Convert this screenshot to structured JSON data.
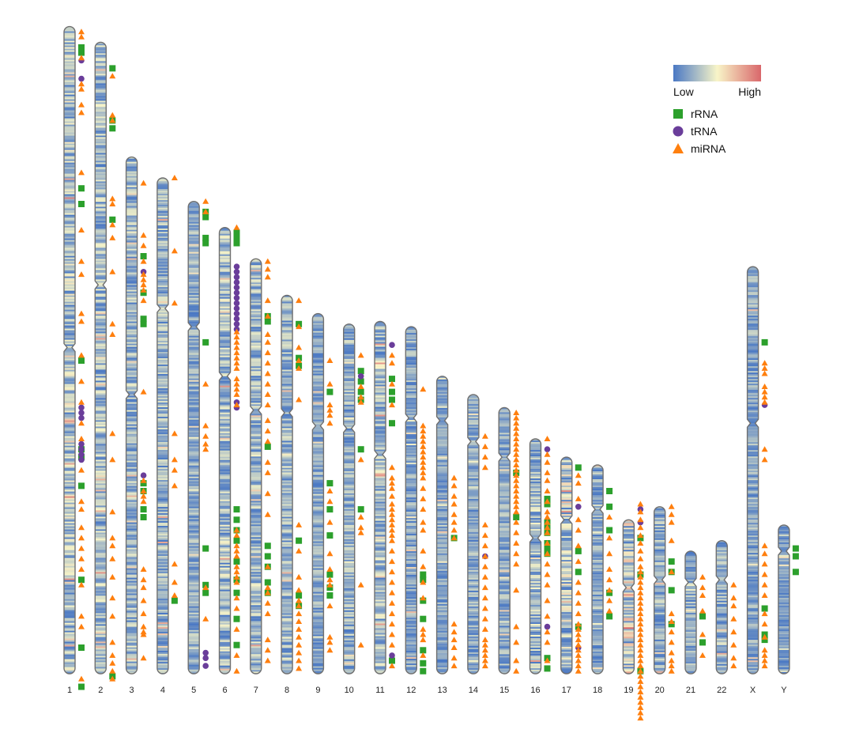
{
  "legend": {
    "gradient": {
      "low_label": "Low",
      "high_label": "High",
      "colors": [
        "#4a78c4",
        "#f8f5c8",
        "#d9676b"
      ]
    },
    "items": [
      {
        "label": "rRNA",
        "shape": "square",
        "color": "#2ca02c"
      },
      {
        "label": "tRNA",
        "shape": "circle",
        "color": "#6a3d9a"
      },
      {
        "label": "miRNA",
        "shape": "triangle",
        "color": "#ff7f0e"
      }
    ]
  },
  "chromosomes": [
    {
      "name": "1",
      "length": 248,
      "centromere": 123,
      "density": 0.45,
      "features": {
        "rRNA": [
          8,
          10,
          62,
          68,
          128,
          162,
          165,
          176,
          212,
          238,
          253
        ],
        "tRNA": [
          13,
          20,
          146,
          148,
          150,
          160,
          162,
          164,
          166
        ],
        "miRNA": [
          2,
          4,
          12,
          22,
          24,
          30,
          33,
          56,
          78,
          90,
          95,
          110,
          113,
          126,
          136,
          144,
          152,
          158,
          170,
          182,
          185,
          192,
          196,
          200,
          204,
          208,
          214,
          226,
          230,
          250
        ]
      }
    },
    {
      "name": "2",
      "length": 242,
      "centromere": 93,
      "density": 0.4,
      "features": {
        "rRNA": [
          10,
          30,
          33,
          68,
          243
        ],
        "tRNA": [],
        "miRNA": [
          13,
          28,
          30,
          60,
          62,
          70,
          75,
          88,
          108,
          112,
          150,
          160,
          180,
          190,
          193,
          198,
          205,
          213,
          220,
          230,
          235,
          238,
          241,
          244
        ]
      }
    },
    {
      "name": "3",
      "length": 198,
      "centromere": 91,
      "density": 0.38,
      "features": {
        "rRNA": [
          38,
          52,
          62,
          64,
          125,
          128,
          135,
          138
        ],
        "tRNA": [
          44,
          122
        ],
        "miRNA": [
          10,
          30,
          34,
          40,
          45,
          47,
          49,
          51,
          55,
          90,
          124,
          128,
          130,
          132,
          158,
          162,
          165,
          170,
          175,
          180,
          182,
          183,
          192
        ]
      }
    },
    {
      "name": "4",
      "length": 190,
      "centromere": 50,
      "density": 0.35,
      "features": {
        "rRNA": [
          162
        ],
        "tRNA": [],
        "miRNA": [
          0,
          28,
          48,
          98,
          108,
          112,
          118,
          148,
          155,
          160
        ]
      }
    },
    {
      "name": "5",
      "length": 181,
      "centromere": 48,
      "density": 0.32,
      "features": {
        "rRNA": [
          4,
          6,
          14,
          16,
          54,
          133,
          147,
          150
        ],
        "tRNA": [
          173,
          175,
          178
        ],
        "miRNA": [
          0,
          4,
          70,
          86,
          90,
          93,
          95,
          148,
          160
        ]
      }
    },
    {
      "name": "6",
      "length": 171,
      "centromere": 57,
      "density": 0.42,
      "features": {
        "rRNA": [
          2,
          4,
          6,
          108,
          112,
          116,
          120,
          128,
          135,
          140,
          150,
          160
        ],
        "tRNA": [
          15,
          17,
          19,
          21,
          23,
          25,
          27,
          29,
          31,
          33,
          35,
          37,
          39,
          67,
          69
        ],
        "miRNA": [
          0,
          40,
          42,
          44,
          46,
          48,
          50,
          52,
          54,
          58,
          60,
          62,
          64,
          68,
          116,
          118,
          122,
          124,
          126,
          130,
          132,
          134,
          136,
          142,
          146,
          154,
          164,
          170
        ]
      }
    },
    {
      "name": "7",
      "length": 159,
      "centromere": 58,
      "density": 0.38,
      "features": {
        "rRNA": [
          22,
          24,
          72,
          110,
          114,
          118,
          124,
          128
        ],
        "tRNA": [],
        "miRNA": [
          1,
          4,
          7,
          16,
          22,
          29,
          32,
          36,
          40,
          44,
          48,
          52,
          56,
          62,
          66,
          70,
          78,
          82,
          90,
          98,
          118,
          126,
          128,
          132,
          136,
          146,
          150,
          154
        ]
      }
    },
    {
      "name": "8",
      "length": 145,
      "centromere": 45,
      "density": 0.36,
      "features": {
        "rRNA": [
          11,
          24,
          27,
          94,
          115,
          119
        ],
        "tRNA": [],
        "miRNA": [
          2,
          12,
          20,
          25,
          28,
          40,
          88,
          98,
          108,
          113,
          117,
          119,
          122,
          125,
          128,
          131,
          134,
          137,
          140,
          143
        ]
      }
    },
    {
      "name": "9",
      "length": 138,
      "centromere": 43,
      "density": 0.3,
      "features": {
        "rRNA": [
          30,
          65,
          75,
          85,
          100,
          105,
          108
        ],
        "tRNA": [],
        "miRNA": [
          18,
          27,
          35,
          37,
          39,
          42,
          68,
          72,
          80,
          92,
          98,
          102,
          104,
          112,
          124,
          126,
          129
        ]
      }
    },
    {
      "name": "10",
      "length": 134,
      "centromere": 40,
      "density": 0.34,
      "features": {
        "rRNA": [
          18,
          22,
          26,
          29,
          48,
          71
        ],
        "tRNA": [
          20
        ],
        "miRNA": [
          12,
          24,
          28,
          30,
          52,
          74,
          78,
          80,
          100,
          123
        ]
      }
    },
    {
      "name": "11",
      "length": 135,
      "centromere": 51,
      "density": 0.42,
      "features": {
        "rRNA": [
          22,
          27,
          30,
          39,
          130
        ],
        "tRNA": [
          9,
          128
        ],
        "miRNA": [
          13,
          16,
          24,
          32,
          56,
          60,
          62,
          64,
          67,
          70,
          72,
          74,
          76,
          78,
          80,
          82,
          84,
          88,
          92,
          96,
          100,
          104,
          108,
          112,
          116,
          120,
          124,
          132
        ]
      }
    },
    {
      "name": "12",
      "length": 133,
      "centromere": 35,
      "density": 0.3,
      "features": {
        "rRNA": [
          95,
          97,
          105,
          112,
          124,
          129,
          132
        ],
        "tRNA": [],
        "miRNA": [
          24,
          38,
          40,
          42,
          44,
          46,
          48,
          50,
          52,
          54,
          56,
          58,
          62,
          66,
          70,
          75,
          78,
          86,
          92,
          98,
          104,
          116,
          118,
          120,
          126
        ]
      }
    },
    {
      "name": "13",
      "length": 114,
      "centromere": 17,
      "density": 0.26,
      "features": {
        "rRNA": [
          62
        ],
        "tRNA": [],
        "miRNA": [
          39,
          42,
          46,
          49,
          53,
          56,
          59,
          62,
          95,
          98,
          101,
          104,
          108,
          111
        ]
      }
    },
    {
      "name": "14",
      "length": 107,
      "centromere": 18,
      "density": 0.3,
      "features": {
        "rRNA": [],
        "tRNA": [
          62
        ],
        "miRNA": [
          16,
          20,
          24,
          28,
          50,
          54,
          58,
          62,
          66,
          70,
          74,
          78,
          82,
          86,
          90,
          94,
          96,
          98,
          100,
          102,
          104
        ]
      }
    },
    {
      "name": "15",
      "length": 102,
      "centromere": 19,
      "density": 0.3,
      "features": {
        "rRNA": [
          25,
          42
        ],
        "tRNA": [],
        "miRNA": [
          2,
          4,
          6,
          8,
          10,
          12,
          14,
          16,
          18,
          20,
          22,
          24,
          26,
          28,
          30,
          32,
          34,
          36,
          38,
          40,
          44,
          48,
          52,
          56,
          60,
          70,
          84,
          90,
          97,
          101
        ]
      }
    },
    {
      "name": "16",
      "length": 90,
      "centromere": 38,
      "density": 0.4,
      "features": {
        "rRNA": [
          23,
          25,
          32,
          34,
          36,
          40,
          42,
          44,
          84,
          88
        ],
        "tRNA": [
          4,
          72
        ],
        "miRNA": [
          0,
          6,
          9,
          13,
          16,
          20,
          24,
          28,
          30,
          32,
          34,
          36,
          40,
          44,
          48,
          52,
          56,
          62,
          68,
          74,
          78,
          85
        ]
      }
    },
    {
      "name": "17",
      "length": 83,
      "centromere": 24,
      "density": 0.48,
      "features": {
        "rRNA": [
          4,
          36,
          44,
          65
        ],
        "tRNA": [
          19,
          73
        ],
        "miRNA": [
          7,
          10,
          16,
          24,
          28,
          34,
          40,
          48,
          52,
          56,
          60,
          64,
          66,
          68,
          70,
          72,
          74,
          76,
          78,
          80,
          82
        ]
      }
    },
    {
      "name": "18",
      "length": 80,
      "centromere": 17,
      "density": 0.28,
      "features": {
        "rRNA": [
          10,
          16,
          25,
          49,
          58
        ],
        "tRNA": [],
        "miRNA": [
          20,
          28,
          34,
          40,
          44,
          48,
          52,
          56
        ]
      }
    },
    {
      "name": "19",
      "length": 59,
      "centromere": 26,
      "density": 0.6,
      "features": {
        "rRNA": [
          7,
          21,
          58
        ],
        "tRNA": [
          -4,
          1
        ],
        "miRNA": [
          -6,
          -3,
          0,
          3,
          6,
          9,
          12,
          15,
          18,
          20,
          22,
          24,
          26,
          28,
          30,
          32,
          34,
          36,
          38,
          40,
          42,
          44,
          46,
          48,
          50,
          52,
          54,
          56,
          58,
          60,
          62,
          64,
          66,
          68,
          70,
          72,
          74,
          76
        ]
      }
    },
    {
      "name": "20",
      "length": 64,
      "centromere": 28,
      "density": 0.34,
      "features": {
        "rRNA": [
          21,
          25,
          32,
          45
        ],
        "tRNA": [],
        "miRNA": [
          0,
          3,
          6,
          13,
          25,
          41,
          44,
          48,
          52,
          56,
          59,
          61,
          63
        ]
      }
    },
    {
      "name": "21",
      "length": 47,
      "centromere": 12,
      "density": 0.32,
      "features": {
        "rRNA": [
          25,
          35
        ],
        "tRNA": [],
        "miRNA": [
          10,
          14,
          17,
          23,
          32,
          40
        ]
      }
    },
    {
      "name": "22",
      "length": 51,
      "centromere": 15,
      "density": 0.34,
      "features": {
        "rRNA": [],
        "tRNA": [],
        "miRNA": [
          17,
          22,
          25,
          30,
          35,
          40,
          45,
          48
        ]
      }
    },
    {
      "name": "X",
      "length": 156,
      "centromere": 60,
      "density": 0.3,
      "features": {
        "rRNA": [
          29,
          131,
          141,
          143
        ],
        "tRNA": [
          53
        ],
        "miRNA": [
          37,
          39,
          41,
          46,
          48,
          50,
          52,
          70,
          74,
          107,
          110,
          114,
          118,
          122,
          126,
          133,
          137,
          142,
          147,
          149,
          151,
          153
        ]
      }
    },
    {
      "name": "Y",
      "length": 57,
      "centromere": 10,
      "density": 0.22,
      "features": {
        "rRNA": [
          9,
          12,
          18
        ],
        "tRNA": [],
        "miRNA": []
      }
    }
  ]
}
